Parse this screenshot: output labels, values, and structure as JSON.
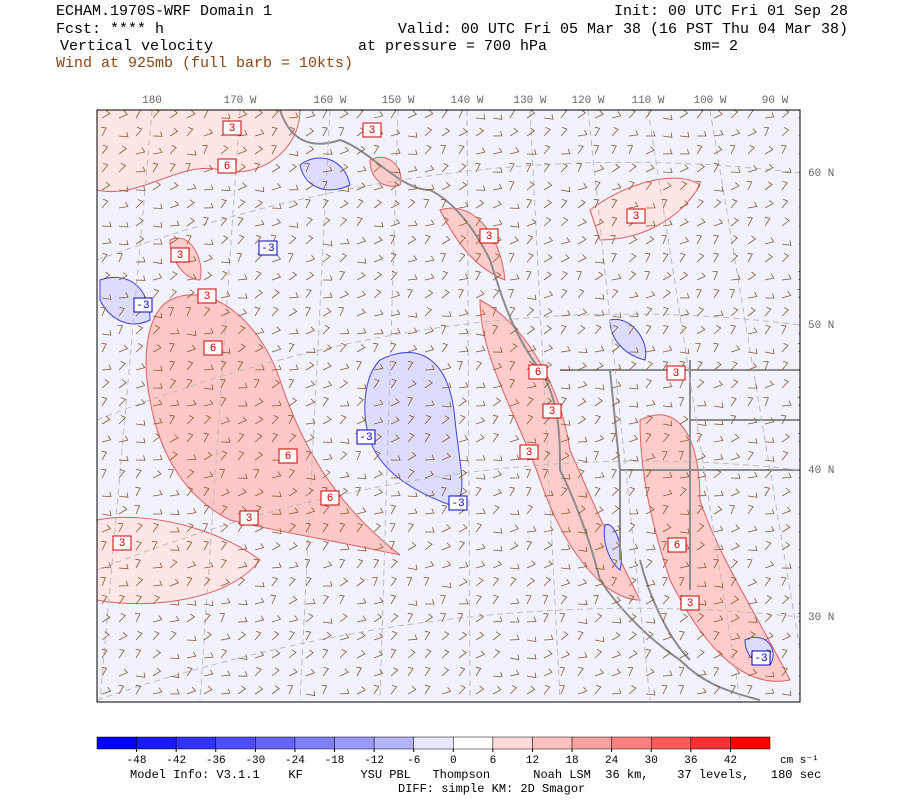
{
  "header": {
    "title": "ECHAM.1970S-WRF Domain 1",
    "init": "Init: 00 UTC Fri 01 Sep 28",
    "forecast": "Fcst: **** h",
    "valid": "Valid: 00 UTC Fri 05 Mar 38 (16 PST Thu 04 Mar 38)",
    "field": "Vertical velocity",
    "pressure": "at pressure =  700 hPa",
    "smoothing": "sm= 2",
    "wind": "Wind at 925mb (full barb = 10kts)"
  },
  "map": {
    "longitudes": [
      "180",
      "170 W",
      "160 W",
      "150 W",
      "140 W",
      "130 W",
      "120 W",
      "110 W",
      "100 W",
      "90 W"
    ],
    "latitudes": [
      "60 N",
      "50 N",
      "40 N",
      "30 N"
    ],
    "positive_labels": [
      "3",
      "3",
      "6",
      "3",
      "3",
      "3",
      "6",
      "6",
      "3",
      "3",
      "3",
      "6",
      "6",
      "3",
      "3",
      "6",
      "3",
      "3"
    ],
    "negative_labels": [
      "-3",
      "-3",
      "-3",
      "-3",
      "-3"
    ]
  },
  "colorbar": {
    "ticks": [
      -48,
      -42,
      -36,
      -30,
      -24,
      -18,
      -12,
      -6,
      0,
      6,
      12,
      18,
      24,
      30,
      36,
      42
    ],
    "colors": [
      "#0000ff",
      "#1a1aff",
      "#3333ff",
      "#4d4dff",
      "#6666ff",
      "#8080ff",
      "#9999ff",
      "#b3b3ff",
      "#e6e6ff",
      "#ffffff",
      "#ffdada",
      "#ffc0c0",
      "#ffa0a0",
      "#ff8080",
      "#ff5a5a",
      "#ff3030",
      "#ff0000"
    ],
    "unit": "cm s⁻¹"
  },
  "footer": {
    "model_info": "Model Info: V3.1.1    KF        YSU PBL   Thompson      Noah LSM  36 km,    37 levels,   180 sec",
    "diffusion": "DIFF: simple KM: 2D Smagor"
  }
}
